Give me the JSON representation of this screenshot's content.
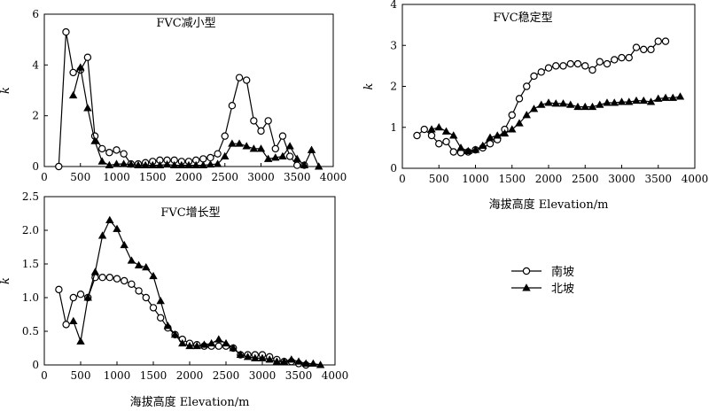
{
  "chart_data": [
    {
      "type": "line",
      "title": "FVC减小型",
      "xlabel": "",
      "ylabel": "k",
      "xlim": [
        0,
        4000
      ],
      "ylim": [
        0,
        6
      ],
      "xticks": [
        "0",
        "500",
        "1000",
        "1500",
        "2000",
        "2500",
        "3000",
        "3500",
        "4000"
      ],
      "yticks": [
        "0",
        "2",
        "4",
        "6"
      ],
      "series": [
        {
          "name": "南坡",
          "x": [
            200,
            300,
            400,
            500,
            600,
            700,
            800,
            900,
            1000,
            1100,
            1200,
            1300,
            1400,
            1500,
            1600,
            1700,
            1800,
            1900,
            2000,
            2100,
            2200,
            2300,
            2400,
            2500,
            2600,
            2700,
            2800,
            2900,
            3000,
            3100,
            3200,
            3300,
            3400,
            3500,
            3600
          ],
          "y": [
            0,
            5.3,
            3.7,
            3.8,
            4.3,
            1.2,
            0.7,
            0.55,
            0.65,
            0.5,
            0.1,
            0.1,
            0.15,
            0.2,
            0.25,
            0.25,
            0.25,
            0.2,
            0.2,
            0.25,
            0.3,
            0.35,
            0.5,
            1.2,
            2.4,
            3.5,
            3.4,
            1.8,
            1.4,
            1.8,
            0.7,
            1.2,
            0.4,
            0.05,
            0.05
          ]
        },
        {
          "name": "北坡",
          "x": [
            400,
            500,
            600,
            700,
            800,
            900,
            1000,
            1100,
            1200,
            1300,
            1400,
            1500,
            1600,
            1700,
            1800,
            1900,
            2000,
            2100,
            2200,
            2300,
            2400,
            2500,
            2600,
            2700,
            2800,
            2900,
            3000,
            3100,
            3200,
            3300,
            3400,
            3500,
            3600,
            3700,
            3800
          ],
          "y": [
            2.8,
            3.9,
            2.3,
            1.0,
            0.2,
            0.05,
            0.1,
            0.1,
            0.08,
            0.05,
            0.05,
            0.05,
            0.05,
            0.08,
            0.05,
            0.05,
            0.05,
            0.05,
            0.05,
            0.08,
            0.1,
            0.4,
            0.9,
            0.9,
            0.8,
            0.7,
            0.7,
            0.3,
            0.35,
            0.4,
            0.8,
            0.3,
            0.05,
            0.65,
            0.0
          ]
        }
      ]
    },
    {
      "type": "line",
      "title": "FVC稳定型",
      "xlabel": "海拔高度 Elevation/m",
      "ylabel": "k",
      "xlim": [
        0,
        4000
      ],
      "ylim": [
        0,
        4
      ],
      "xticks": [
        "0",
        "500",
        "1000",
        "1500",
        "2000",
        "2500",
        "3000",
        "3500",
        "4000"
      ],
      "yticks": [
        "0",
        "1",
        "2",
        "3",
        "4"
      ],
      "series": [
        {
          "name": "南坡",
          "x": [
            200,
            300,
            400,
            500,
            600,
            700,
            800,
            900,
            1000,
            1100,
            1200,
            1300,
            1400,
            1500,
            1600,
            1700,
            1800,
            1900,
            2000,
            2100,
            2200,
            2300,
            2400,
            2500,
            2600,
            2700,
            2800,
            2900,
            3000,
            3100,
            3200,
            3300,
            3400,
            3500,
            3600
          ],
          "y": [
            0.8,
            0.95,
            0.8,
            0.6,
            0.65,
            0.4,
            0.38,
            0.4,
            0.45,
            0.5,
            0.6,
            0.7,
            0.95,
            1.3,
            1.7,
            2.0,
            2.25,
            2.35,
            2.45,
            2.5,
            2.5,
            2.55,
            2.55,
            2.5,
            2.4,
            2.6,
            2.55,
            2.65,
            2.7,
            2.7,
            2.95,
            2.9,
            2.9,
            3.1,
            3.1
          ]
        },
        {
          "name": "北坡",
          "x": [
            400,
            500,
            600,
            700,
            800,
            900,
            1000,
            1100,
            1200,
            1300,
            1400,
            1500,
            1600,
            1700,
            1800,
            1900,
            2000,
            2100,
            2200,
            2300,
            2400,
            2500,
            2600,
            2700,
            2800,
            2900,
            3000,
            3100,
            3200,
            3300,
            3400,
            3500,
            3600,
            3700,
            3800
          ],
          "y": [
            0.95,
            1.0,
            0.9,
            0.8,
            0.5,
            0.42,
            0.45,
            0.55,
            0.75,
            0.8,
            0.85,
            0.95,
            1.1,
            1.3,
            1.45,
            1.55,
            1.6,
            1.58,
            1.58,
            1.55,
            1.5,
            1.5,
            1.5,
            1.55,
            1.6,
            1.6,
            1.62,
            1.62,
            1.65,
            1.65,
            1.62,
            1.7,
            1.72,
            1.72,
            1.75
          ]
        }
      ]
    },
    {
      "type": "line",
      "title": "FVC增长型",
      "xlabel": "海拔高度 Elevation/m",
      "ylabel": "k",
      "xlim": [
        0,
        4000
      ],
      "ylim": [
        0,
        2.5
      ],
      "xticks": [
        "0",
        "500",
        "1000",
        "1500",
        "2000",
        "2500",
        "3000",
        "3500",
        "4000"
      ],
      "yticks": [
        "0",
        "0.5",
        "1.0",
        "1.5",
        "2.0",
        "2.5"
      ],
      "series": [
        {
          "name": "南坡",
          "x": [
            200,
            300,
            400,
            500,
            600,
            700,
            800,
            900,
            1000,
            1100,
            1200,
            1300,
            1400,
            1500,
            1600,
            1700,
            1800,
            1900,
            2000,
            2100,
            2200,
            2300,
            2400,
            2500,
            2600,
            2700,
            2800,
            2900,
            3000,
            3100,
            3200,
            3300,
            3400,
            3500,
            3600
          ],
          "y": [
            1.12,
            0.6,
            1.0,
            1.05,
            1.0,
            1.3,
            1.3,
            1.3,
            1.28,
            1.25,
            1.2,
            1.1,
            1.0,
            0.85,
            0.7,
            0.55,
            0.45,
            0.38,
            0.32,
            0.3,
            0.28,
            0.28,
            0.28,
            0.28,
            0.25,
            0.15,
            0.15,
            0.15,
            0.15,
            0.12,
            0.08,
            0.05,
            0.05,
            0.02,
            0.0
          ]
        },
        {
          "name": "北坡",
          "x": [
            400,
            500,
            600,
            700,
            800,
            900,
            1000,
            1100,
            1200,
            1300,
            1400,
            1500,
            1600,
            1700,
            1800,
            1900,
            2000,
            2100,
            2200,
            2300,
            2400,
            2500,
            2600,
            2700,
            2800,
            2900,
            3000,
            3100,
            3200,
            3300,
            3400,
            3500,
            3600,
            3700,
            3800
          ],
          "y": [
            0.65,
            0.35,
            1.0,
            1.38,
            1.92,
            2.15,
            2.02,
            1.78,
            1.55,
            1.48,
            1.45,
            1.32,
            0.95,
            0.58,
            0.45,
            0.32,
            0.28,
            0.28,
            0.3,
            0.32,
            0.38,
            0.32,
            0.25,
            0.15,
            0.12,
            0.1,
            0.1,
            0.08,
            0.05,
            0.05,
            0.08,
            0.05,
            0.02,
            0.02,
            0.0
          ]
        }
      ]
    }
  ],
  "legend": {
    "entries": [
      {
        "label": "南坡",
        "marker": "circle"
      },
      {
        "label": "北坡",
        "marker": "triangle"
      }
    ]
  }
}
